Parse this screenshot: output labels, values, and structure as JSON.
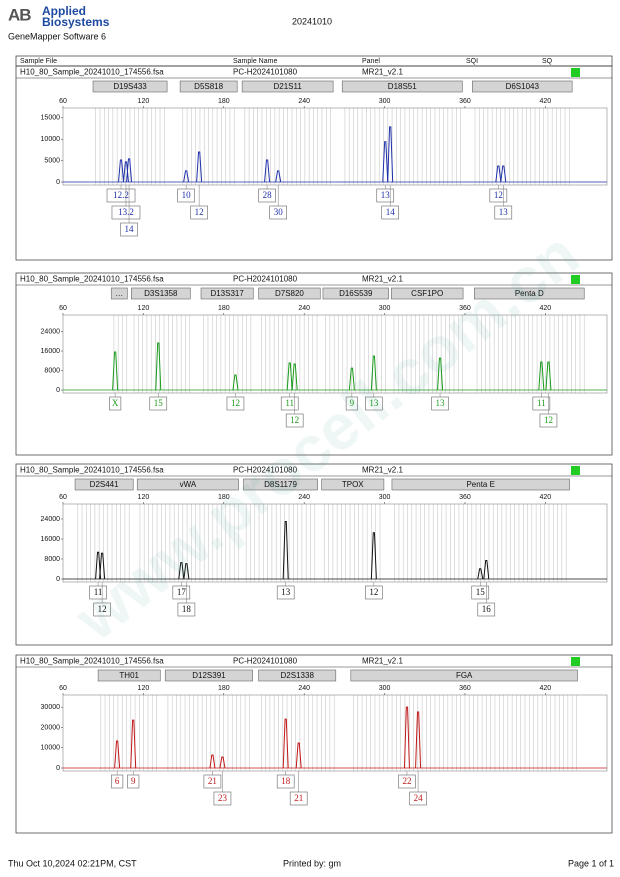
{
  "header": {
    "logo": "AB",
    "brand_line1": "Applied",
    "brand_line2": "Biosystems",
    "software": "GeneMapper Software 6",
    "date": "20241010"
  },
  "columns": [
    "Sample File",
    "Sample Name",
    "Panel",
    "SQI",
    "SQ"
  ],
  "watermark": "www.procell.com.cn",
  "chart_data": [
    {
      "type": "peaks",
      "sample_file": "H10_80_Sample_20241010_174556.fsa",
      "sample_name": "PC-H2024101080",
      "panel": "MR21_v2.1",
      "color": "#1f2fa8",
      "xlim": [
        60,
        466
      ],
      "xticks": [
        60,
        120,
        180,
        240,
        300,
        360,
        420
      ],
      "ylim": [
        0,
        17300
      ],
      "yticks": [
        0,
        5000,
        10000,
        15000
      ],
      "loci": [
        {
          "name": "D19S433",
          "start": 82.4,
          "end": 137.7
        },
        {
          "name": "D5S818",
          "start": 147.4,
          "end": 190
        },
        {
          "name": "D21S11",
          "start": 193.7,
          "end": 261.6
        },
        {
          "name": "D18S51",
          "start": 268.4,
          "end": 358
        },
        {
          "name": "D6S1043",
          "start": 365.5,
          "end": 440
        }
      ],
      "peaks": [
        {
          "bp": 103.3,
          "height": 5150,
          "allele": "12.2"
        },
        {
          "bp": 107,
          "height": 4700,
          "allele": "13.2"
        },
        {
          "bp": 109.3,
          "height": 5400,
          "allele": "14"
        },
        {
          "bp": 151.9,
          "height": 2600,
          "allele": "10"
        },
        {
          "bp": 161.6,
          "height": 7000,
          "allele": "12"
        },
        {
          "bp": 212.3,
          "height": 5150,
          "allele": "28"
        },
        {
          "bp": 220.6,
          "height": 2600,
          "allele": "30"
        },
        {
          "bp": 300.5,
          "height": 9400,
          "allele": "13"
        },
        {
          "bp": 304.2,
          "height": 12900,
          "allele": "14"
        },
        {
          "bp": 384.9,
          "height": 3750,
          "allele": "12"
        },
        {
          "bp": 388.6,
          "height": 3750,
          "allele": "13"
        }
      ]
    },
    {
      "type": "peaks",
      "sample_file": "H10_80_Sample_20241010_174556.fsa",
      "sample_name": "PC-H2024101080",
      "panel": "MR21_v2.1",
      "color": "#1a9a1a",
      "xlim": [
        60,
        466
      ],
      "xticks": [
        60,
        120,
        180,
        240,
        300,
        360,
        420
      ],
      "ylim": [
        0,
        30800
      ],
      "yticks": [
        0,
        8000,
        16000,
        24000
      ],
      "loci": [
        {
          "name": "…",
          "start": 96,
          "end": 108
        },
        {
          "name": "D3S1358",
          "start": 111,
          "end": 155
        },
        {
          "name": "D13S317",
          "start": 163,
          "end": 202
        },
        {
          "name": "D7S820",
          "start": 206,
          "end": 252
        },
        {
          "name": "D16S539",
          "start": 254,
          "end": 303
        },
        {
          "name": "CSF1PO",
          "start": 305,
          "end": 358.6
        },
        {
          "name": "Penta D",
          "start": 367,
          "end": 449
        }
      ],
      "peaks": [
        {
          "bp": 98.9,
          "height": 15600,
          "allele": "X"
        },
        {
          "bp": 131.1,
          "height": 19300,
          "allele": "15"
        },
        {
          "bp": 188.7,
          "height": 6150,
          "allele": "12"
        },
        {
          "bp": 229.2,
          "height": 11100,
          "allele": "11"
        },
        {
          "bp": 232.9,
          "height": 10700,
          "allele": "12"
        },
        {
          "bp": 275.6,
          "height": 9000,
          "allele": "9"
        },
        {
          "bp": 292,
          "height": 13900,
          "allele": "13"
        },
        {
          "bp": 341.4,
          "height": 13100,
          "allele": "13"
        },
        {
          "bp": 417,
          "height": 11500,
          "allele": "11"
        },
        {
          "bp": 422.3,
          "height": 11500,
          "allele": "12"
        }
      ]
    },
    {
      "type": "peaks",
      "sample_file": "H10_80_Sample_20241010_174556.fsa",
      "sample_name": "PC-H2024101080",
      "panel": "MR21_v2.1",
      "color": "#111111",
      "xlim": [
        60,
        466
      ],
      "xticks": [
        60,
        120,
        180,
        240,
        300,
        360,
        420
      ],
      "ylim": [
        0,
        30000
      ],
      "yticks": [
        0,
        8000,
        16000,
        24000
      ],
      "loci": [
        {
          "name": "D2S441",
          "start": 69,
          "end": 112.4
        },
        {
          "name": "vWA",
          "start": 115.4,
          "end": 191
        },
        {
          "name": "D8S1179",
          "start": 194.7,
          "end": 250
        },
        {
          "name": "TPOX",
          "start": 253,
          "end": 299.5
        },
        {
          "name": "Penta E",
          "start": 305.5,
          "end": 438
        }
      ],
      "peaks": [
        {
          "bp": 86.2,
          "height": 10700,
          "allele": "11"
        },
        {
          "bp": 89.2,
          "height": 10300,
          "allele": "12"
        },
        {
          "bp": 148.3,
          "height": 6550,
          "allele": "17"
        },
        {
          "bp": 152.1,
          "height": 6150,
          "allele": "18"
        },
        {
          "bp": 226.2,
          "height": 23000,
          "allele": "13"
        },
        {
          "bp": 292,
          "height": 18500,
          "allele": "12"
        },
        {
          "bp": 371.4,
          "height": 4100,
          "allele": "15"
        },
        {
          "bp": 375.9,
          "height": 7400,
          "allele": "16"
        }
      ]
    },
    {
      "type": "peaks",
      "sample_file": "H10_80_Sample_20241010_174556.fsa",
      "sample_name": "PC-H2024101080",
      "panel": "MR21_v2.1",
      "color": "#c01818",
      "xlim": [
        60,
        466
      ],
      "xticks": [
        60,
        120,
        180,
        240,
        300,
        360,
        420
      ],
      "ylim": [
        0,
        36000
      ],
      "yticks": [
        0,
        10000,
        20000,
        30000
      ],
      "loci": [
        {
          "name": "TH01",
          "start": 86.2,
          "end": 132.6
        },
        {
          "name": "D12S391",
          "start": 136.3,
          "end": 201.5
        },
        {
          "name": "D2S1338",
          "start": 206,
          "end": 263.6
        },
        {
          "name": "FGA",
          "start": 274.8,
          "end": 444
        }
      ],
      "peaks": [
        {
          "bp": 100.4,
          "height": 13300,
          "allele": "6"
        },
        {
          "bp": 112.4,
          "height": 23600,
          "allele": "9"
        },
        {
          "bp": 171.5,
          "height": 6400,
          "allele": "21"
        },
        {
          "bp": 179,
          "height": 5400,
          "allele": "23"
        },
        {
          "bp": 226.2,
          "height": 24100,
          "allele": "18"
        },
        {
          "bp": 235.9,
          "height": 12300,
          "allele": "21"
        },
        {
          "bp": 316.7,
          "height": 30000,
          "allele": "22"
        },
        {
          "bp": 325,
          "height": 27600,
          "allele": "24"
        }
      ]
    }
  ],
  "footer": {
    "timestamp": "Thu Oct 10,2024 02:21PM, CST",
    "printed_by": "Printed by: gm",
    "page": "Page 1 of 1"
  }
}
